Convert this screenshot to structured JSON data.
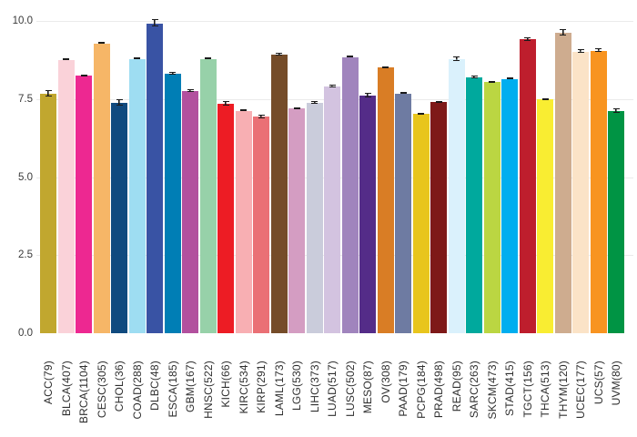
{
  "chart_data": {
    "type": "bar",
    "title": "",
    "xlabel": "",
    "ylabel": "",
    "ylim": [
      0,
      10
    ],
    "yticks": [
      0.0,
      2.5,
      5.0,
      7.5,
      10.0
    ],
    "ytick_labels": [
      "0.0",
      "2.5",
      "5.0",
      "7.5",
      "10.0"
    ],
    "grid": true,
    "legend": "none",
    "background_color": "#ffffff",
    "gridline_color": "#ebebeb",
    "error_bar_color": "#1b1b1b",
    "categories": [
      "ACC(79)",
      "BLCA(407)",
      "BRCA(1104)",
      "CESC(305)",
      "CHOL(36)",
      "COAD(288)",
      "DLBC(48)",
      "ESCA(185)",
      "GBM(167)",
      "HNSC(522)",
      "KICH(66)",
      "KIRC(534)",
      "KIRP(291)",
      "LAML(173)",
      "LGG(530)",
      "LIHC(373)",
      "LUAD(517)",
      "LUSC(502)",
      "MESO(87)",
      "OV(308)",
      "PAAD(179)",
      "PCPG(184)",
      "PRAD(498)",
      "READ(95)",
      "SARC(263)",
      "SKCM(473)",
      "STAD(415)",
      "TGCT(156)",
      "THCA(513)",
      "THYM(120)",
      "UCEC(177)",
      "UCS(57)",
      "UVM(80)"
    ],
    "values": [
      7.66,
      8.76,
      8.25,
      9.28,
      7.37,
      8.79,
      9.92,
      8.3,
      7.76,
      8.79,
      7.34,
      7.12,
      6.93,
      8.92,
      7.19,
      7.38,
      7.9,
      8.84,
      7.61,
      8.5,
      7.68,
      7.03,
      7.4,
      8.77,
      8.19,
      8.05,
      8.14,
      9.41,
      7.49,
      9.62,
      9.02,
      9.05,
      7.12
    ],
    "errors": [
      0.12,
      0.04,
      0.04,
      0.05,
      0.12,
      0.04,
      0.13,
      0.06,
      0.06,
      0.04,
      0.1,
      0.05,
      0.07,
      0.06,
      0.04,
      0.06,
      0.05,
      0.05,
      0.09,
      0.05,
      0.06,
      0.04,
      0.03,
      0.08,
      0.06,
      0.04,
      0.05,
      0.08,
      0.03,
      0.12,
      0.07,
      0.07,
      0.09
    ],
    "colors": [
      "#C1A72F",
      "#FAD2D9",
      "#ED2891",
      "#F6B667",
      "#104A7F",
      "#9EDDF2",
      "#3953A4",
      "#007EB5",
      "#B2509E",
      "#97D1A9",
      "#ED1C24",
      "#F8AFB3",
      "#EA7075",
      "#754C29",
      "#D49DC2",
      "#CACCDB",
      "#D3C3E0",
      "#A084BD",
      "#542C88",
      "#D97D25",
      "#6E7BA2",
      "#E8C51D",
      "#7E1918",
      "#DAF1FC",
      "#00A99D",
      "#BBD642",
      "#00AEEF",
      "#BE1E2D",
      "#F9ED32",
      "#CEAC8F",
      "#FBE3C7",
      "#F89420",
      "#009444"
    ]
  }
}
